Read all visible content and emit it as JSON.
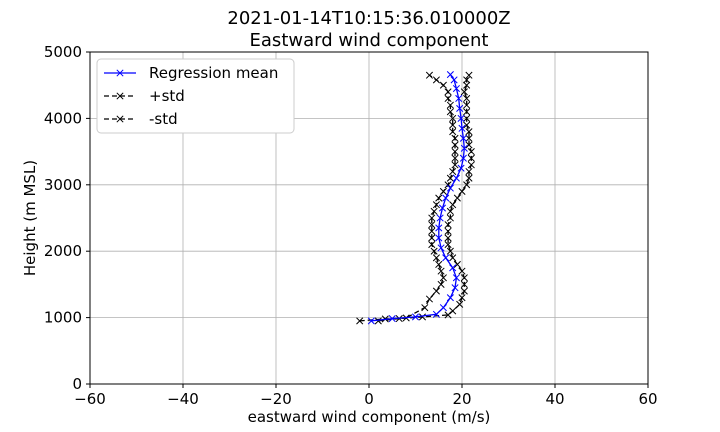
{
  "chart_data": {
    "type": "line",
    "title": "2021-01-14T10:15:36.010000Z",
    "subtitle": "Eastward wind component",
    "xlabel": "eastward wind component (m/s)",
    "ylabel": "Height (m MSL)",
    "xlim": [
      -60,
      60
    ],
    "ylim": [
      0,
      5000
    ],
    "xticks": [
      -60,
      -40,
      -20,
      0,
      20,
      40,
      60
    ],
    "xtick_labels": [
      "−60",
      "−40",
      "−20",
      "0",
      "20",
      "40",
      "60"
    ],
    "yticks": [
      0,
      1000,
      2000,
      3000,
      4000,
      5000
    ],
    "ytick_labels": [
      "0",
      "1000",
      "2000",
      "3000",
      "4000",
      "5000"
    ],
    "grid": true,
    "legend_position": "top-left",
    "series": [
      {
        "name": "Regression mean",
        "color": "#0000ff",
        "linestyle": "solid",
        "marker": "x",
        "points": [
          [
            0.5,
            950
          ],
          [
            5.0,
            985
          ],
          [
            10.0,
            1010
          ],
          [
            14.5,
            1050
          ],
          [
            16.0,
            1150
          ],
          [
            17.5,
            1300
          ],
          [
            18.5,
            1450
          ],
          [
            18.8,
            1600
          ],
          [
            18.0,
            1750
          ],
          [
            16.5,
            1900
          ],
          [
            15.5,
            2050
          ],
          [
            15.0,
            2200
          ],
          [
            15.0,
            2350
          ],
          [
            15.3,
            2500
          ],
          [
            15.8,
            2650
          ],
          [
            16.5,
            2800
          ],
          [
            17.5,
            2950
          ],
          [
            18.8,
            3100
          ],
          [
            19.8,
            3250
          ],
          [
            20.3,
            3400
          ],
          [
            20.5,
            3550
          ],
          [
            20.3,
            3700
          ],
          [
            20.0,
            3850
          ],
          [
            19.8,
            4000
          ],
          [
            19.5,
            4150
          ],
          [
            19.3,
            4300
          ],
          [
            18.8,
            4450
          ],
          [
            18.3,
            4580
          ],
          [
            17.5,
            4660
          ]
        ]
      },
      {
        "name": "+std",
        "color": "#000000",
        "linestyle": "dashed",
        "marker": "x",
        "points": [
          [
            2.0,
            950
          ],
          [
            6.5,
            985
          ],
          [
            11.5,
            1010
          ],
          [
            17.0,
            1040
          ],
          [
            18.0,
            1100
          ],
          [
            19.5,
            1200
          ],
          [
            20.0,
            1300
          ],
          [
            20.5,
            1400
          ],
          [
            20.5,
            1500
          ],
          [
            20.5,
            1600
          ],
          [
            20.0,
            1700
          ],
          [
            19.0,
            1800
          ],
          [
            18.0,
            1900
          ],
          [
            17.5,
            2000
          ],
          [
            17.0,
            2100
          ],
          [
            17.0,
            2200
          ],
          [
            17.0,
            2300
          ],
          [
            17.0,
            2400
          ],
          [
            17.5,
            2500
          ],
          [
            17.5,
            2600
          ],
          [
            18.0,
            2700
          ],
          [
            19.0,
            2800
          ],
          [
            20.0,
            2900
          ],
          [
            21.0,
            3000
          ],
          [
            21.5,
            3100
          ],
          [
            21.5,
            3200
          ],
          [
            22.0,
            3300
          ],
          [
            22.0,
            3400
          ],
          [
            22.0,
            3500
          ],
          [
            21.5,
            3600
          ],
          [
            21.5,
            3700
          ],
          [
            21.5,
            3800
          ],
          [
            21.0,
            3900
          ],
          [
            21.0,
            4000
          ],
          [
            21.0,
            4100
          ],
          [
            21.0,
            4200
          ],
          [
            21.0,
            4300
          ],
          [
            20.5,
            4400
          ],
          [
            21.0,
            4500
          ],
          [
            21.0,
            4580
          ],
          [
            21.5,
            4650
          ]
        ]
      },
      {
        "name": "-std",
        "color": "#000000",
        "linestyle": "dashed",
        "marker": "x",
        "points": [
          [
            -2.0,
            950
          ],
          [
            3.5,
            980
          ],
          [
            8.0,
            995
          ],
          [
            12.0,
            1150
          ],
          [
            13.0,
            1280
          ],
          [
            14.5,
            1400
          ],
          [
            15.5,
            1500
          ],
          [
            16.0,
            1600
          ],
          [
            15.5,
            1700
          ],
          [
            15.0,
            1800
          ],
          [
            14.5,
            1900
          ],
          [
            14.0,
            2000
          ],
          [
            13.5,
            2100
          ],
          [
            13.5,
            2200
          ],
          [
            13.5,
            2300
          ],
          [
            13.5,
            2400
          ],
          [
            13.5,
            2500
          ],
          [
            14.0,
            2600
          ],
          [
            14.5,
            2700
          ],
          [
            15.0,
            2800
          ],
          [
            16.0,
            2900
          ],
          [
            17.0,
            3000
          ],
          [
            17.5,
            3100
          ],
          [
            18.0,
            3200
          ],
          [
            18.5,
            3300
          ],
          [
            18.5,
            3400
          ],
          [
            18.5,
            3500
          ],
          [
            18.5,
            3600
          ],
          [
            18.5,
            3700
          ],
          [
            18.0,
            3800
          ],
          [
            18.0,
            3900
          ],
          [
            18.0,
            4000
          ],
          [
            17.5,
            4100
          ],
          [
            17.5,
            4200
          ],
          [
            17.0,
            4300
          ],
          [
            17.0,
            4400
          ],
          [
            16.0,
            4500
          ],
          [
            14.5,
            4580
          ],
          [
            13.0,
            4650
          ]
        ]
      }
    ]
  }
}
